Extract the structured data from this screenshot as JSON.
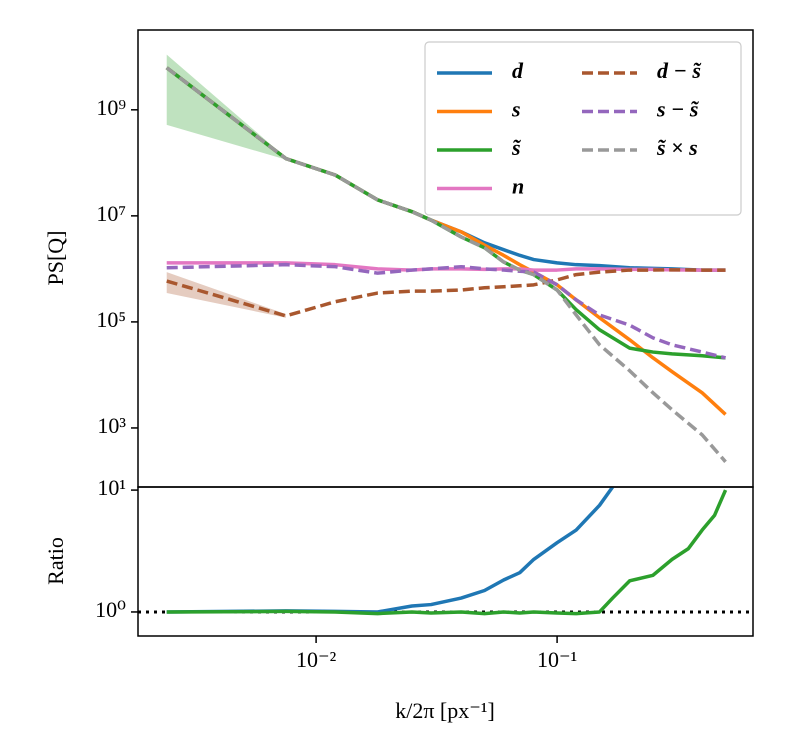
{
  "chart_data": [
    {
      "type": "line",
      "ylabel": "PS[Q]",
      "log_x": true,
      "log_y": true,
      "xlim": [
        0.001824,
        0.65
      ],
      "ylim": [
        77,
        32000000000.0
      ],
      "yticks": [
        {
          "value": 1000,
          "label": "10³"
        },
        {
          "value": 100000,
          "label": "10⁵"
        },
        {
          "value": 10000000,
          "label": "10⁷"
        },
        {
          "value": 1000000000,
          "label": "10⁹"
        }
      ],
      "legend": "upper right",
      "x": [
        0.0024,
        0.0075,
        0.012,
        0.018,
        0.025,
        0.03,
        0.04,
        0.05,
        0.06,
        0.07,
        0.08,
        0.1,
        0.12,
        0.15,
        0.2,
        0.25,
        0.3,
        0.4,
        0.5
      ],
      "series": [
        {
          "name": "d",
          "color": "#1f77b4",
          "dashed": false,
          "values": [
            6200000000.0,
            120000000.0,
            59000000.0,
            20000000.0,
            12000000.0,
            8300000.0,
            5000000.0,
            3100000.0,
            2300000.0,
            1800000.0,
            1500000.0,
            1300000.0,
            1200000.0,
            1150000.0,
            1050000.0,
            1020000.0,
            1000000.0,
            950000.0,
            950000.0
          ]
        },
        {
          "name": "s",
          "color": "#ff7f0e",
          "dashed": false,
          "values": [
            6200000000.0,
            120000000.0,
            59000000.0,
            20000000.0,
            12000000.0,
            8300000.0,
            5000000.0,
            2800000.0,
            1800000.0,
            1200000.0,
            870000.0,
            500000.0,
            260000.0,
            120000.0,
            46000.0,
            21000.0,
            11500.0,
            4600.0,
            1800.0
          ]
        },
        {
          "name": "s̃",
          "color": "#2ca02c",
          "dashed": false,
          "values": [
            6200000000.0,
            120000000.0,
            59000000.0,
            20000000.0,
            12000000.0,
            8300000.0,
            4000000.0,
            2500000.0,
            1350000.0,
            950000.0,
            780000.0,
            400000.0,
            170000.0,
            71000.0,
            32000.0,
            27000.0,
            25000.0,
            23000.0,
            21000.0
          ],
          "band": {
            "x": [
              0.0024,
              0.0075
            ],
            "lower": [
              520000000.0,
              115000000.0
            ],
            "upper": [
              11000000000.0,
              125000000.0
            ]
          }
        },
        {
          "name": "n",
          "color": "#e377c2",
          "dashed": false,
          "values": [
            1300000.0,
            1300000.0,
            1200000.0,
            1000000.0,
            950000.0,
            1000000.0,
            1000000.0,
            980000.0,
            1000000.0,
            1000000.0,
            950000.0,
            950000.0,
            1000000.0,
            1000000.0,
            980000.0,
            980000.0,
            960000.0,
            950000.0,
            950000.0
          ]
        },
        {
          "name": "d − s̃",
          "color": "#a9572e",
          "dashed": true,
          "values": [
            590000.0,
            130000.0,
            240000.0,
            350000.0,
            380000.0,
            380000.0,
            400000.0,
            440000.0,
            460000.0,
            480000.0,
            500000.0,
            620000.0,
            780000.0,
            870000.0,
            950000.0,
            950000.0,
            960000.0,
            950000.0,
            950000.0
          ],
          "band": {
            "x": [
              0.0024,
              0.0075
            ],
            "lower": [
              350000.0,
              120000.0
            ],
            "upper": [
              870000.0,
              140000.0
            ]
          }
        },
        {
          "name": "s − s̃",
          "color": "#9467bd",
          "dashed": true,
          "values": [
            1050000.0,
            1200000.0,
            1100000.0,
            830000.0,
            950000.0,
            1000000.0,
            1100000.0,
            1000000.0,
            950000.0,
            900000.0,
            870000.0,
            500000.0,
            260000.0,
            135000.0,
            87000.0,
            50000.0,
            37000.0,
            27000.0,
            21000.0
          ]
        },
        {
          "name": "s̃ × s",
          "color": "#999999",
          "dashed": true,
          "values": [
            6200000000.0,
            120000000.0,
            59000000.0,
            20000000.0,
            12000000.0,
            8300000.0,
            4000000.0,
            2500000.0,
            1350000.0,
            950000.0,
            780000.0,
            400000.0,
            135000.0,
            37000.0,
            12000.0,
            4600.0,
            2200.0,
            740,
            230
          ]
        }
      ]
    },
    {
      "type": "line",
      "ylabel": "Ratio",
      "xlabel": "k/2π [px⁻¹]",
      "log_x": true,
      "log_y": true,
      "xlim": [
        0.001824,
        0.65
      ],
      "ylim": [
        0.635,
        10.6
      ],
      "xticks": [
        {
          "value": 0.01,
          "label": "10⁻²"
        },
        {
          "value": 0.1,
          "label": "10⁻¹"
        }
      ],
      "yticks": [
        {
          "value": 1,
          "label": "10⁰"
        },
        {
          "value": 10,
          "label": "10¹"
        }
      ],
      "hline": 1,
      "x": [
        0.0024,
        0.0075,
        0.012,
        0.018,
        0.025,
        0.03,
        0.04,
        0.05,
        0.06,
        0.07,
        0.08,
        0.1,
        0.12,
        0.15,
        0.17,
        0.2,
        0.25,
        0.3,
        0.35,
        0.4,
        0.45,
        0.5
      ],
      "series": [
        {
          "color": "#1f77b4",
          "dashed": false,
          "values": [
            1,
            1.02,
            1.01,
            1.0,
            1.12,
            1.15,
            1.3,
            1.5,
            1.83,
            2.1,
            2.7,
            3.7,
            4.7,
            7.5,
            10.6,
            null,
            null,
            null,
            null,
            null,
            null,
            null
          ]
        },
        {
          "color": "#2ca02c",
          "dashed": false,
          "values": [
            1,
            1.01,
            1,
            0.97,
            1,
            0.98,
            1,
            0.97,
            1,
            0.98,
            1,
            0.98,
            0.97,
            1.0,
            1.3,
            1.8,
            2.0,
            2.7,
            3.3,
            4.7,
            6.2,
            10.0
          ]
        }
      ]
    }
  ]
}
